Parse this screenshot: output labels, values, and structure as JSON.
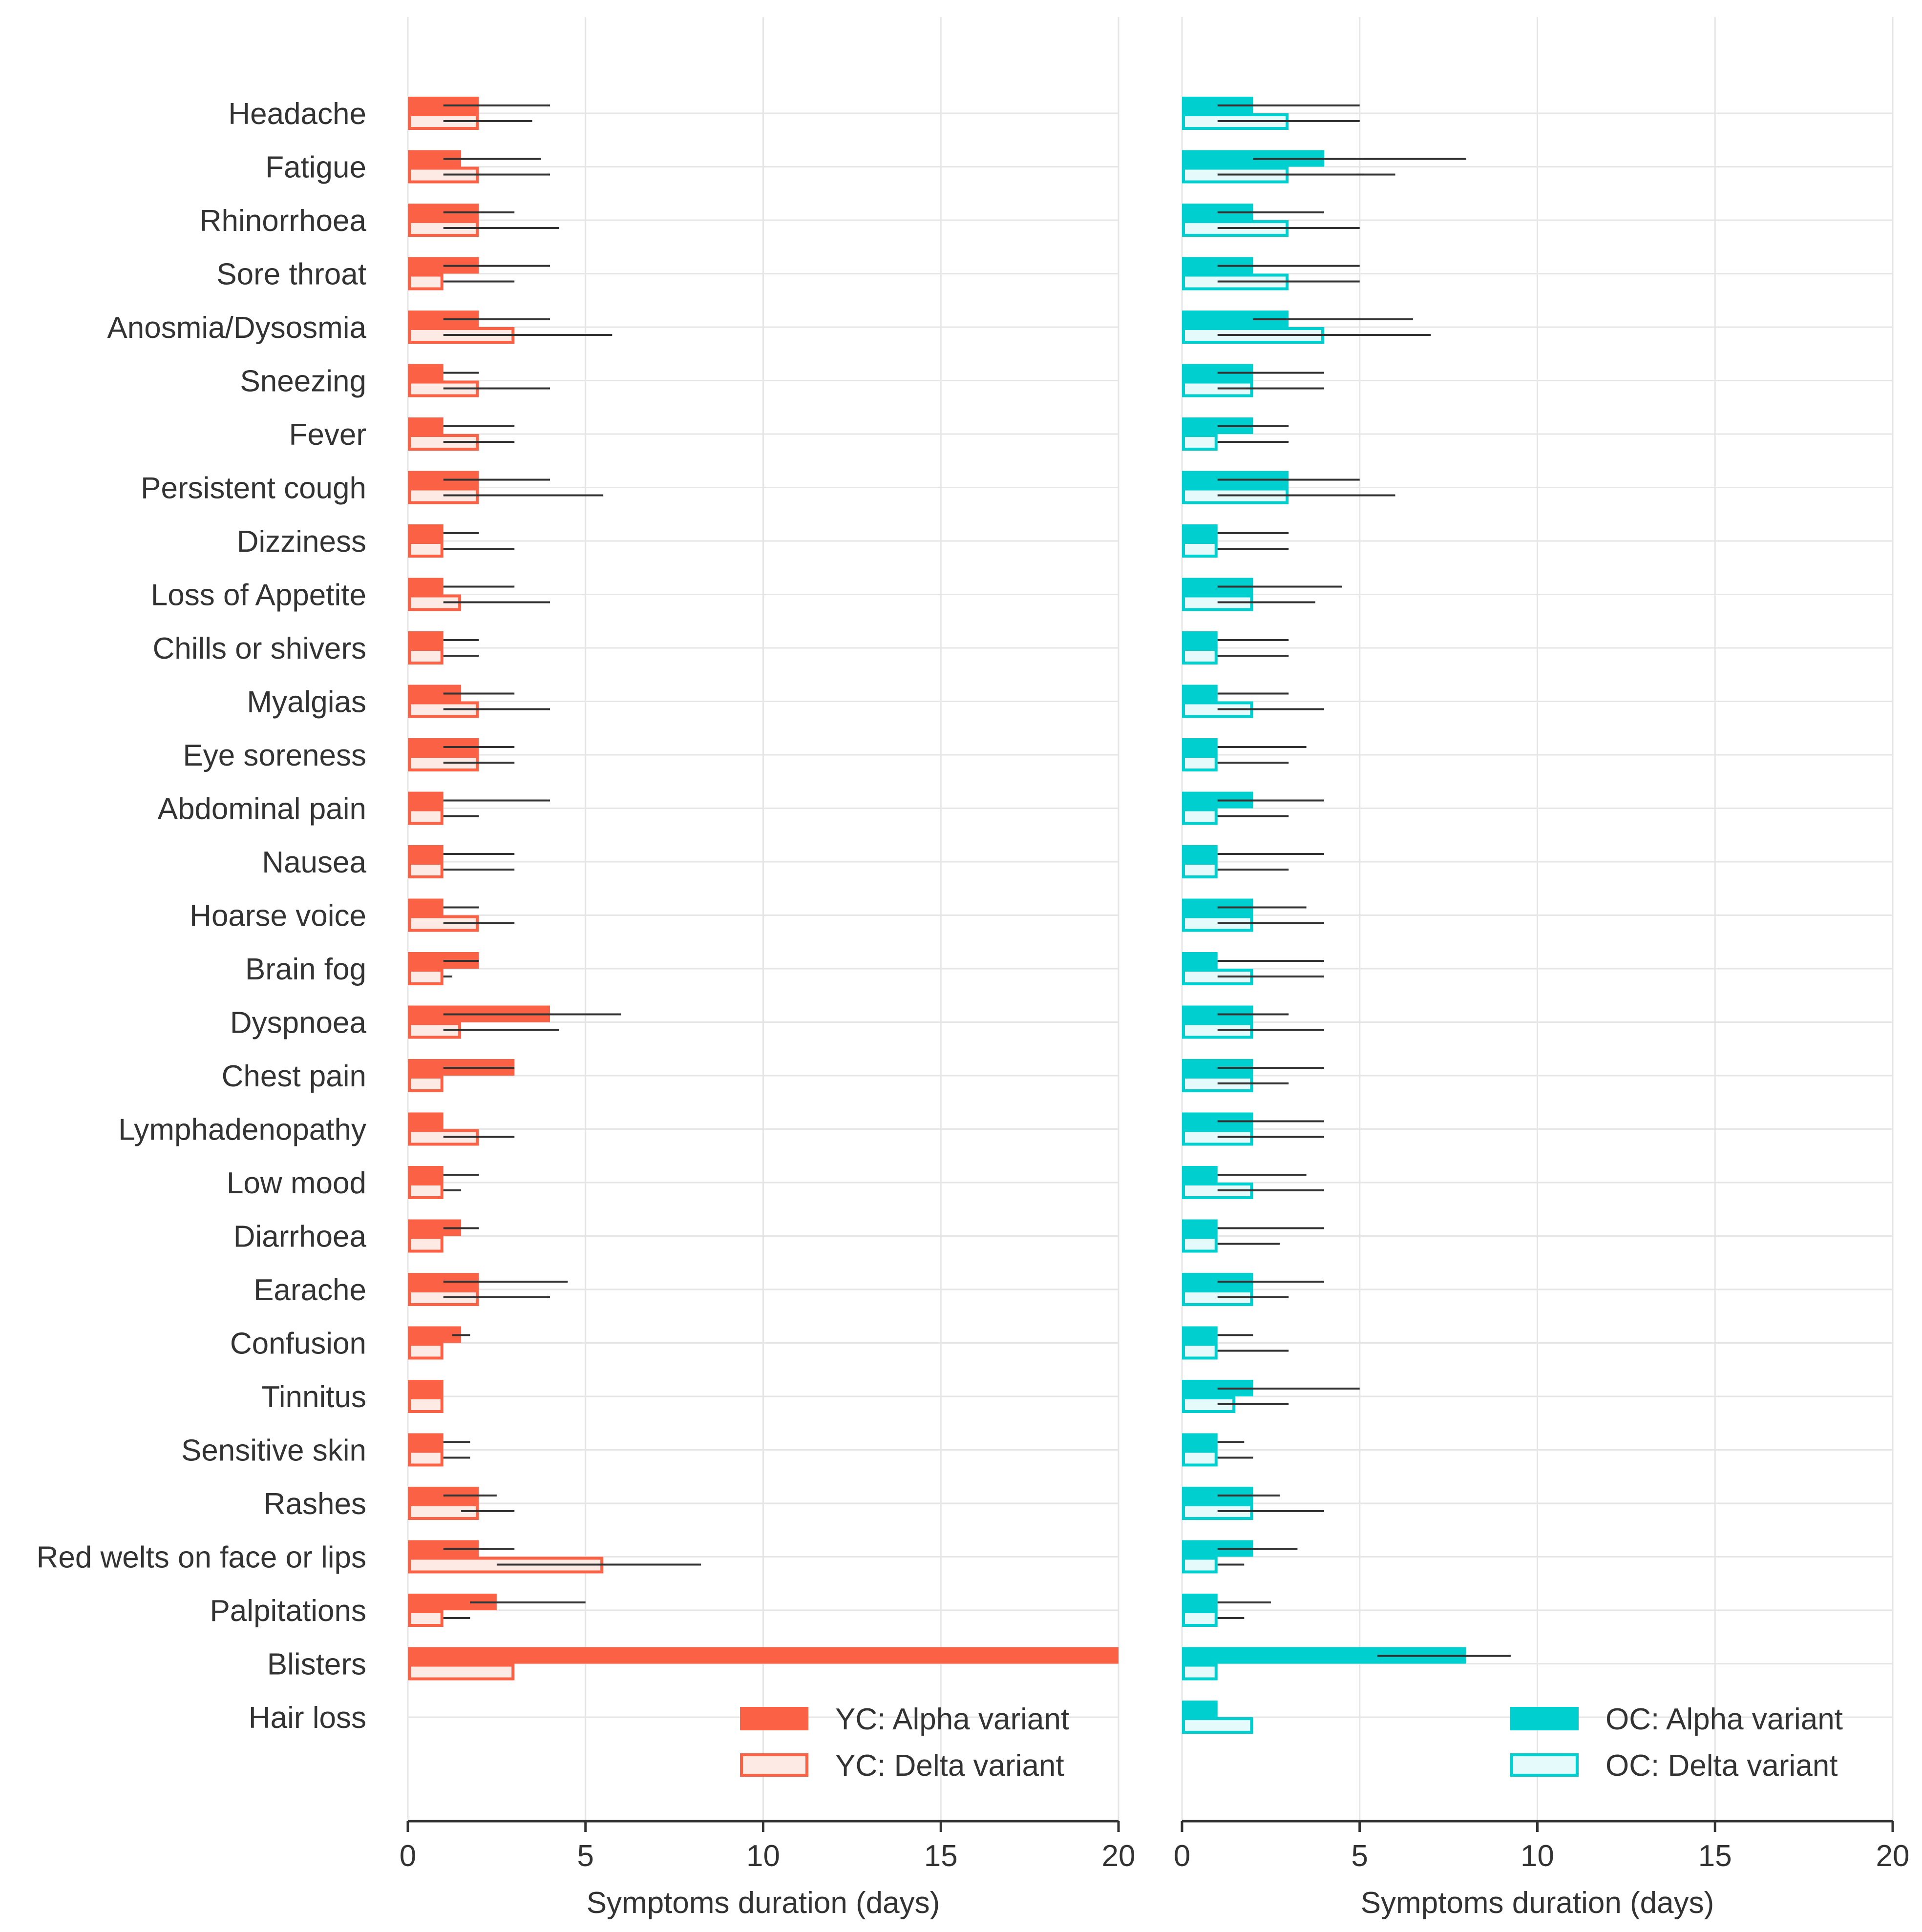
{
  "chart_data": {
    "type": "bar",
    "orientation": "horizontal",
    "categories": [
      "Headache",
      "Fatigue",
      "Rhinorrhoea",
      "Sore throat",
      "Anosmia/Dysosmia",
      "Sneezing",
      "Fever",
      "Persistent cough",
      "Dizziness",
      "Loss of Appetite",
      "Chills or shivers",
      "Myalgias",
      "Eye soreness",
      "Abdominal pain",
      "Nausea",
      "Hoarse voice",
      "Brain fog",
      "Dyspnoea",
      "Chest pain",
      "Lymphadenopathy",
      "Low mood",
      "Diarrhoea",
      "Earache",
      "Confusion",
      "Tinnitus",
      "Sensitive skin",
      "Rashes",
      "Red welts on face or lips",
      "Palpitations",
      "Blisters",
      "Hair loss"
    ],
    "colors": {
      "yc": "#fb6245",
      "yc_light": "#feeae5",
      "oc": "#00cfcf",
      "oc_light": "#e5fafa",
      "error_bar": "#333333",
      "grid": "#e6e6e6",
      "axis": "#333333"
    },
    "panels": [
      {
        "xlabel": "Symptoms duration (days)",
        "xlim": [
          0,
          20
        ],
        "xticks": [
          0,
          5,
          10,
          15,
          20
        ],
        "legend_position": "bottom-right",
        "series": [
          {
            "name": "YC: Alpha variant",
            "style": "filled",
            "values": [
              2,
              1.5,
              2,
              2,
              2,
              1,
              1,
              2,
              1,
              1,
              1,
              1.5,
              2,
              1,
              1,
              1,
              2,
              4,
              3,
              1,
              1,
              1.5,
              2,
              1.5,
              1,
              1,
              2,
              2,
              2.5,
              20,
              null
            ],
            "err_low": [
              1,
              1,
              1,
              1,
              1,
              1,
              1,
              1,
              1,
              1,
              1,
              1,
              1,
              1,
              1,
              1,
              1,
              1,
              1,
              1,
              1,
              1,
              1,
              1.25,
              1,
              1,
              1,
              1,
              1.75,
              null,
              null
            ],
            "err_high": [
              4,
              3.75,
              3,
              4,
              4,
              2,
              3,
              4,
              2,
              3,
              2,
              3,
              3,
              4,
              3,
              2,
              2,
              6,
              3,
              1,
              2,
              2,
              4.5,
              1.75,
              1,
              1.75,
              2.5,
              3,
              5,
              null,
              null
            ]
          },
          {
            "name": "YC: Delta variant",
            "style": "outline",
            "values": [
              2,
              2,
              2,
              1,
              3,
              2,
              2,
              2,
              1,
              1.5,
              1,
              2,
              2,
              1,
              1,
              2,
              1,
              1.5,
              1,
              2,
              1,
              1,
              2,
              1,
              1,
              1,
              2,
              5.5,
              1,
              3,
              null
            ],
            "err_low": [
              1,
              1,
              1,
              1,
              1,
              1,
              1,
              1,
              1,
              1,
              1,
              1,
              1,
              1,
              1,
              1,
              1,
              1,
              1,
              1,
              1,
              1,
              1,
              1,
              1,
              1,
              1.5,
              2.5,
              1,
              null,
              null
            ],
            "err_high": [
              3.5,
              4,
              4.25,
              3,
              5.75,
              4,
              3,
              5.5,
              3,
              4,
              2,
              4,
              3,
              2,
              3,
              3,
              1.25,
              4.25,
              1,
              3,
              1.5,
              1,
              4,
              1,
              1,
              1.75,
              3,
              8.25,
              1.75,
              null,
              null
            ]
          }
        ]
      },
      {
        "xlabel": "Symptoms duration (days)",
        "xlim": [
          0,
          20
        ],
        "xticks": [
          0,
          5,
          10,
          15,
          20
        ],
        "legend_position": "bottom-right",
        "series": [
          {
            "name": "OC: Alpha variant",
            "style": "filled",
            "values": [
              2,
              4,
              2,
              2,
              3,
              2,
              2,
              3,
              1,
              2,
              1,
              1,
              1,
              2,
              1,
              2,
              1,
              2,
              2,
              2,
              1,
              1,
              2,
              1,
              2,
              1,
              2,
              2,
              1,
              8,
              1
            ],
            "err_low": [
              1,
              2,
              1,
              1,
              2,
              1,
              1,
              1,
              1,
              1,
              1,
              1,
              1,
              1,
              1,
              1,
              1,
              1,
              1,
              1,
              1,
              1,
              1,
              1,
              1,
              1,
              1,
              1,
              1,
              5.5,
              null
            ],
            "err_high": [
              5,
              8,
              4,
              5,
              6.5,
              4,
              3,
              5,
              3,
              4.5,
              3,
              3,
              3.5,
              4,
              4,
              3.5,
              4,
              3,
              4,
              4,
              3.5,
              4,
              4,
              2,
              5,
              1.75,
              2.75,
              3.25,
              2.5,
              9.25,
              null
            ]
          },
          {
            "name": "OC: Delta variant",
            "style": "outline",
            "values": [
              3,
              3,
              3,
              3,
              4,
              2,
              1,
              3,
              1,
              2,
              1,
              2,
              1,
              1,
              1,
              2,
              2,
              2,
              2,
              2,
              2,
              1,
              2,
              1,
              1.5,
              1,
              2,
              1,
              1,
              1,
              2
            ],
            "err_low": [
              1,
              1,
              1,
              1,
              1,
              1,
              1,
              1,
              1,
              1,
              1,
              1,
              1,
              1,
              1,
              1,
              1,
              1,
              1,
              1,
              1,
              1,
              1,
              1,
              1,
              1,
              1,
              1,
              1,
              null,
              null
            ],
            "err_high": [
              5,
              6,
              5,
              5,
              7,
              4,
              3,
              6,
              3,
              3.75,
              3,
              4,
              3,
              3,
              3,
              4,
              4,
              4,
              3,
              4,
              4,
              2.75,
              3,
              3,
              3,
              2,
              4,
              1.75,
              1.75,
              null,
              null
            ]
          }
        ]
      }
    ]
  }
}
